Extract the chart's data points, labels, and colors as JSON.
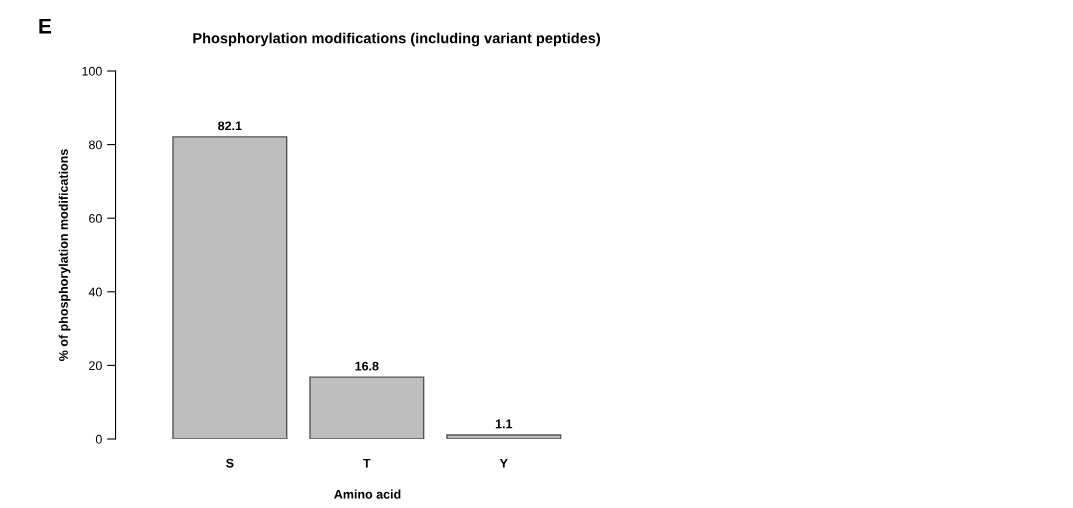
{
  "chart_data": {
    "type": "bar",
    "title": "Phosphorylation modifications (including variant peptides)",
    "xlabel": "Amino acid",
    "ylabel": "% of phosphorylation modifications",
    "categories": [
      "S",
      "T",
      "Y"
    ],
    "values": [
      82.1,
      16.8,
      1.1
    ],
    "color": "#bebebe",
    "ylim": [
      0,
      100
    ],
    "yticks": [
      0,
      20,
      40,
      60,
      80,
      100
    ],
    "data_labels": true,
    "grid": false,
    "legend": false,
    "annotations": [
      "E"
    ]
  }
}
